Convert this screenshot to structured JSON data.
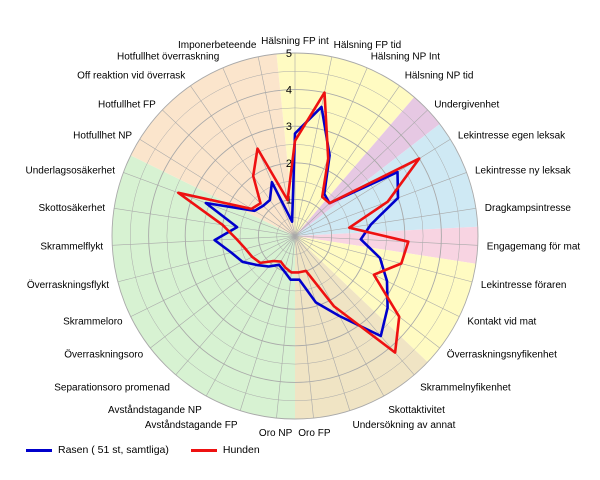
{
  "chart_data": {
    "type": "radar",
    "categories": [
      "Hälsning FP int",
      "Hälsning FP tid",
      "Hälsning NP Int",
      "Hälsning NP tid",
      "Undergivenhet",
      "Lekintresse egen leksak",
      "Lekintresse ny leksak",
      "Dragkampsintresse",
      "Engagemang för mat",
      "Lekintresse föraren",
      "Kontakt vid mat",
      "Överraskningsnyfikenhet",
      "Skrammelnyfikenhet",
      "Skottaktivitet",
      "Undersökning av annat",
      "Oro FP",
      "Oro NP",
      "Avståndstagande FP",
      "Avståndstagande NP",
      "Separationsoro promenad",
      "Överraskningsoro",
      "Skrammeloro",
      "Överraskningsflykt",
      "Skrammelflykt",
      "Skottosäkerhet",
      "Underlagsosäkerhet",
      "Hotfullhet NP",
      "Hotfullhet FP",
      "Off reaktion vid överrask",
      "Hotfullhet överraskning",
      "Imponerbeteende"
    ],
    "rlim": [
      0,
      5
    ],
    "ticks": [
      "1",
      "2",
      "3",
      "4",
      "5"
    ],
    "grid": true,
    "legend_position": "bottom-left",
    "series": [
      {
        "name": "Rasen ( 51 st, samtliga)",
        "color": "#0000cc",
        "values": [
          2.8,
          3.6,
          2.4,
          1.4,
          1.3,
          3.3,
          3.0,
          2.1,
          1.8,
          2.4,
          2.8,
          3.2,
          3.6,
          2.5,
          1.9,
          1.2,
          1.2,
          1.0,
          0.9,
          1.1,
          1.3,
          1.6,
          1.8,
          2.2,
          1.6,
          2.6,
          1.3,
          1.2,
          1.2,
          1.6,
          0.4
        ]
      },
      {
        "name": "Hunden",
        "color": "#ee1111",
        "values": [
          2.6,
          4.0,
          2.3,
          1.3,
          1.3,
          4.0,
          2.7,
          1.5,
          3.1,
          3.0,
          2.4,
          3.6,
          4.2,
          2.2,
          1.0,
          1.0,
          1.0,
          0.9,
          0.8,
          0.9,
          1.2,
          1.3,
          1.4,
          1.6,
          2.0,
          3.4,
          1.4,
          1.3,
          2.0,
          2.6,
          1.0
        ]
      }
    ],
    "sectors": [
      {
        "from": 0,
        "to": 3,
        "color": "#fffbc2"
      },
      {
        "from": 4,
        "to": 4,
        "color": "#e6c8e3"
      },
      {
        "from": 5,
        "to": 7,
        "color": "#cfe9f4"
      },
      {
        "from": 8,
        "to": 8,
        "color": "#f8d4e2"
      },
      {
        "from": 9,
        "to": 11,
        "color": "#fffbc2"
      },
      {
        "from": 12,
        "to": 15,
        "color": "#f0e4c4"
      },
      {
        "from": 16,
        "to": 25,
        "color": "#d7f2d2"
      },
      {
        "from": 26,
        "to": 30,
        "color": "#fbe5cc"
      }
    ],
    "grid_color": "#a9a9a9",
    "label_color": "#000000"
  }
}
